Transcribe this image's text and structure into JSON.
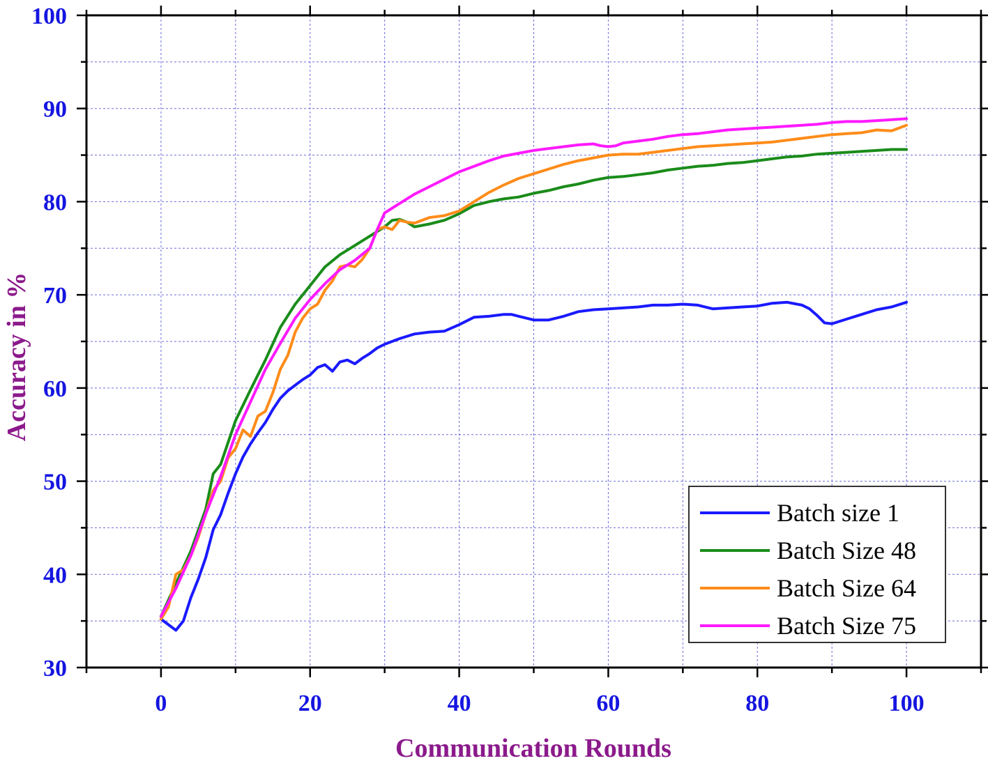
{
  "chart_data": {
    "type": "line",
    "title": "",
    "xlabel": "Communication Rounds",
    "ylabel": "Accuracy in %",
    "xlim": [
      -10,
      110
    ],
    "ylim": [
      30,
      100
    ],
    "xticks": [
      0,
      20,
      40,
      60,
      80,
      100
    ],
    "yticks": [
      30,
      40,
      50,
      60,
      70,
      80,
      90,
      100
    ],
    "grid": true,
    "legend_position": "bottom-right",
    "series": [
      {
        "name": "Batch size 1",
        "color": "#1a1aff",
        "x": [
          0,
          2,
          3,
          4,
          5,
          6,
          7,
          8,
          9,
          10,
          11,
          12,
          13,
          14,
          15,
          16,
          17,
          18,
          19,
          20,
          21,
          22,
          23,
          24,
          25,
          26,
          27,
          28,
          29,
          30,
          32,
          34,
          36,
          38,
          40,
          42,
          44,
          46,
          47,
          48,
          50,
          52,
          54,
          56,
          58,
          60,
          62,
          64,
          66,
          68,
          70,
          72,
          74,
          76,
          78,
          80,
          82,
          84,
          86,
          87,
          88,
          89,
          90,
          92,
          94,
          96,
          98,
          100
        ],
        "values": [
          35.2,
          34.0,
          35.0,
          37.5,
          39.5,
          41.8,
          44.8,
          46.4,
          48.7,
          50.8,
          52.6,
          54.0,
          55.2,
          56.3,
          57.7,
          58.9,
          59.7,
          60.3,
          60.9,
          61.4,
          62.2,
          62.5,
          61.8,
          62.8,
          63.0,
          62.6,
          63.2,
          63.7,
          64.3,
          64.7,
          65.3,
          65.8,
          66.0,
          66.1,
          66.8,
          67.6,
          67.7,
          67.9,
          67.9,
          67.7,
          67.3,
          67.3,
          67.7,
          68.2,
          68.4,
          68.5,
          68.6,
          68.7,
          68.9,
          68.9,
          69.0,
          68.9,
          68.5,
          68.6,
          68.7,
          68.8,
          69.1,
          69.2,
          68.9,
          68.5,
          67.8,
          67.0,
          66.9,
          67.4,
          67.9,
          68.4,
          68.7,
          69.2
        ]
      },
      {
        "name": "Batch Size 48",
        "color": "#1a8c1a",
        "x": [
          0,
          2,
          4,
          6,
          7,
          8,
          10,
          12,
          14,
          16,
          18,
          20,
          22,
          24,
          26,
          28,
          30,
          31,
          32,
          33,
          34,
          36,
          38,
          40,
          42,
          44,
          46,
          48,
          50,
          52,
          54,
          56,
          58,
          60,
          62,
          64,
          66,
          68,
          70,
          72,
          74,
          76,
          78,
          80,
          82,
          84,
          86,
          88,
          90,
          92,
          94,
          96,
          98,
          100
        ],
        "values": [
          35.5,
          39.0,
          42.5,
          47.0,
          50.8,
          51.8,
          56.5,
          59.8,
          63.0,
          66.5,
          69.0,
          71.0,
          73.0,
          74.3,
          75.3,
          76.3,
          77.3,
          78.0,
          78.1,
          77.8,
          77.3,
          77.6,
          78.0,
          78.7,
          79.6,
          80.0,
          80.3,
          80.5,
          80.9,
          81.2,
          81.6,
          81.9,
          82.3,
          82.6,
          82.7,
          82.9,
          83.1,
          83.4,
          83.6,
          83.8,
          83.9,
          84.1,
          84.2,
          84.4,
          84.6,
          84.8,
          84.9,
          85.1,
          85.2,
          85.3,
          85.4,
          85.5,
          85.6,
          85.6
        ]
      },
      {
        "name": "Batch Size 64",
        "color": "#ff8c1a",
        "x": [
          0,
          1,
          2,
          3,
          4,
          5,
          6,
          7,
          8,
          9,
          10,
          11,
          12,
          13,
          14,
          15,
          16,
          17,
          18,
          19,
          20,
          21,
          22,
          23,
          24,
          25,
          26,
          27,
          28,
          29,
          30,
          31,
          32,
          33,
          34,
          36,
          38,
          40,
          42,
          44,
          46,
          48,
          50,
          52,
          54,
          56,
          58,
          60,
          62,
          64,
          66,
          68,
          70,
          72,
          74,
          76,
          78,
          80,
          82,
          84,
          86,
          88,
          90,
          92,
          94,
          96,
          98,
          100
        ],
        "values": [
          35.2,
          36.5,
          40.0,
          40.5,
          42.0,
          44.0,
          46.5,
          49.0,
          50.0,
          52.5,
          53.5,
          55.5,
          54.8,
          57.0,
          57.5,
          59.5,
          62.0,
          63.5,
          66.0,
          67.5,
          68.5,
          69.0,
          70.5,
          71.5,
          73.0,
          73.2,
          73.0,
          73.8,
          75.0,
          77.0,
          77.3,
          77.0,
          78.0,
          77.8,
          77.7,
          78.3,
          78.5,
          79.0,
          80.0,
          81.0,
          81.8,
          82.5,
          83.0,
          83.5,
          84.0,
          84.4,
          84.7,
          85.0,
          85.1,
          85.1,
          85.3,
          85.5,
          85.7,
          85.9,
          86.0,
          86.1,
          86.2,
          86.3,
          86.4,
          86.6,
          86.8,
          87.0,
          87.2,
          87.3,
          87.4,
          87.7,
          87.6,
          88.2
        ]
      },
      {
        "name": "Batch Size 75",
        "color": "#ff1aff",
        "x": [
          0,
          2,
          4,
          6,
          8,
          10,
          12,
          14,
          16,
          18,
          20,
          22,
          24,
          26,
          28,
          29,
          30,
          32,
          34,
          36,
          38,
          40,
          42,
          44,
          46,
          48,
          50,
          52,
          54,
          56,
          58,
          59,
          60,
          61,
          62,
          64,
          66,
          68,
          70,
          72,
          74,
          76,
          78,
          80,
          82,
          84,
          86,
          88,
          90,
          92,
          94,
          96,
          98,
          100
        ],
        "values": [
          35.5,
          38.5,
          42.0,
          46.5,
          50.5,
          55.0,
          58.5,
          62.0,
          64.8,
          67.5,
          69.5,
          71.2,
          72.7,
          73.7,
          75.0,
          77.0,
          78.8,
          79.8,
          80.8,
          81.6,
          82.4,
          83.2,
          83.8,
          84.4,
          84.9,
          85.2,
          85.5,
          85.7,
          85.9,
          86.1,
          86.2,
          86.0,
          85.9,
          86.0,
          86.3,
          86.5,
          86.7,
          87.0,
          87.2,
          87.3,
          87.5,
          87.7,
          87.8,
          87.9,
          88.0,
          88.1,
          88.2,
          88.3,
          88.5,
          88.6,
          88.6,
          88.7,
          88.8,
          88.9
        ]
      }
    ]
  }
}
